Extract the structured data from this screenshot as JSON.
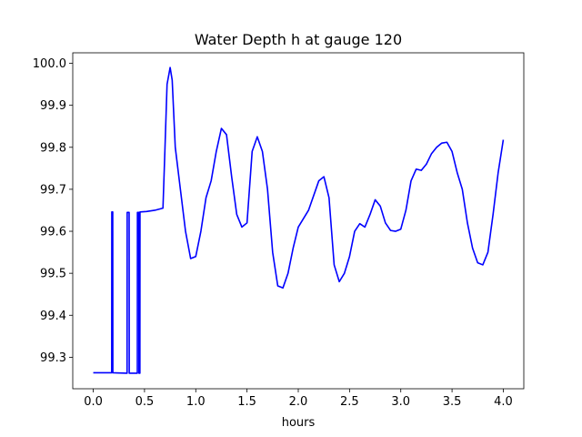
{
  "chart_data": {
    "type": "line",
    "title": "Water Depth h at gauge 120",
    "xlabel": "hours",
    "ylabel": "",
    "xlim": [
      -0.2,
      4.2
    ],
    "ylim": [
      99.225,
      100.025
    ],
    "xticks": [
      0.0,
      0.5,
      1.0,
      1.5,
      2.0,
      2.5,
      3.0,
      3.5,
      4.0
    ],
    "xtick_labels": [
      "0.0",
      "0.5",
      "1.0",
      "1.5",
      "2.0",
      "2.5",
      "3.0",
      "3.5",
      "4.0"
    ],
    "yticks": [
      99.3,
      99.4,
      99.5,
      99.6,
      99.7,
      99.8,
      99.9,
      100.0
    ],
    "ytick_labels": [
      "99.3",
      "99.4",
      "99.5",
      "99.6",
      "99.7",
      "99.8",
      "99.9",
      "100.0"
    ],
    "grid": false,
    "series": [
      {
        "color": "#0000ff",
        "points": [
          [
            0.0,
            99.263
          ],
          [
            0.18,
            99.263
          ],
          [
            0.181,
            99.646
          ],
          [
            0.19,
            99.646
          ],
          [
            0.191,
            99.263
          ],
          [
            0.33,
            99.262
          ],
          [
            0.331,
            99.645
          ],
          [
            0.35,
            99.645
          ],
          [
            0.351,
            99.262
          ],
          [
            0.43,
            99.262
          ],
          [
            0.431,
            99.645
          ],
          [
            0.445,
            99.645
          ],
          [
            0.446,
            99.262
          ],
          [
            0.455,
            99.262
          ],
          [
            0.456,
            99.646
          ],
          [
            0.52,
            99.647
          ],
          [
            0.6,
            99.65
          ],
          [
            0.68,
            99.655
          ],
          [
            0.7,
            99.8
          ],
          [
            0.72,
            99.95
          ],
          [
            0.75,
            99.99
          ],
          [
            0.77,
            99.96
          ],
          [
            0.8,
            99.8
          ],
          [
            0.85,
            99.7
          ],
          [
            0.9,
            99.6
          ],
          [
            0.95,
            99.535
          ],
          [
            1.0,
            99.54
          ],
          [
            1.05,
            99.6
          ],
          [
            1.1,
            99.68
          ],
          [
            1.15,
            99.72
          ],
          [
            1.2,
            99.79
          ],
          [
            1.25,
            99.845
          ],
          [
            1.3,
            99.83
          ],
          [
            1.35,
            99.73
          ],
          [
            1.4,
            99.64
          ],
          [
            1.45,
            99.61
          ],
          [
            1.5,
            99.62
          ],
          [
            1.55,
            99.79
          ],
          [
            1.6,
            99.825
          ],
          [
            1.65,
            99.79
          ],
          [
            1.7,
            99.7
          ],
          [
            1.75,
            99.55
          ],
          [
            1.8,
            99.47
          ],
          [
            1.85,
            99.465
          ],
          [
            1.9,
            99.5
          ],
          [
            1.95,
            99.56
          ],
          [
            2.0,
            99.61
          ],
          [
            2.1,
            99.65
          ],
          [
            2.2,
            99.72
          ],
          [
            2.25,
            99.73
          ],
          [
            2.3,
            99.68
          ],
          [
            2.35,
            99.52
          ],
          [
            2.4,
            99.48
          ],
          [
            2.45,
            99.5
          ],
          [
            2.5,
            99.54
          ],
          [
            2.55,
            99.6
          ],
          [
            2.6,
            99.618
          ],
          [
            2.65,
            99.61
          ],
          [
            2.7,
            99.64
          ],
          [
            2.75,
            99.675
          ],
          [
            2.8,
            99.66
          ],
          [
            2.85,
            99.62
          ],
          [
            2.9,
            99.602
          ],
          [
            2.95,
            99.6
          ],
          [
            3.0,
            99.605
          ],
          [
            3.05,
            99.65
          ],
          [
            3.1,
            99.72
          ],
          [
            3.15,
            99.748
          ],
          [
            3.2,
            99.745
          ],
          [
            3.25,
            99.76
          ],
          [
            3.3,
            99.785
          ],
          [
            3.35,
            99.8
          ],
          [
            3.4,
            99.81
          ],
          [
            3.45,
            99.812
          ],
          [
            3.5,
            99.79
          ],
          [
            3.55,
            99.74
          ],
          [
            3.6,
            99.7
          ],
          [
            3.65,
            99.62
          ],
          [
            3.7,
            99.56
          ],
          [
            3.75,
            99.525
          ],
          [
            3.8,
            99.52
          ],
          [
            3.85,
            99.55
          ],
          [
            3.9,
            99.64
          ],
          [
            3.95,
            99.74
          ],
          [
            4.0,
            99.818
          ]
        ]
      }
    ]
  }
}
